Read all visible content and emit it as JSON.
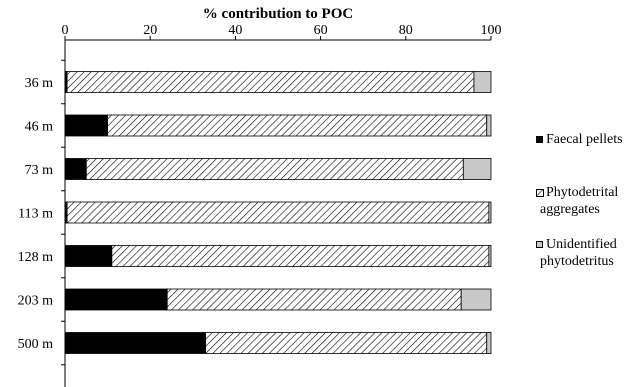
{
  "chart_data": {
    "type": "bar",
    "orientation": "horizontal",
    "stacked": true,
    "title": "% contribution to POC",
    "xlabel": "% contribution to POC",
    "ylabel": "",
    "xlim": [
      0,
      100
    ],
    "x_ticks": [
      "0",
      "20",
      "40",
      "60",
      "80",
      "100"
    ],
    "categories": [
      "36 m",
      "46 m",
      "73 m",
      "113 m",
      "128 m",
      "203 m",
      "500 m"
    ],
    "series": [
      {
        "name": "Faecal pellets",
        "fill": "solid",
        "color": "#000000",
        "values": [
          0.5,
          10,
          5,
          0.5,
          11,
          24,
          33
        ]
      },
      {
        "name": "Phytodetrital aggregates",
        "fill": "hatch",
        "color": "#000000",
        "values": [
          95.5,
          89,
          88.5,
          99,
          88.5,
          69,
          66
        ]
      },
      {
        "name": "Unidentified phytodetritus",
        "fill": "solid",
        "color": "#c8c8c8",
        "values": [
          4,
          1,
          6.5,
          0.5,
          0.5,
          7,
          1
        ]
      }
    ],
    "legend_position": "right",
    "grid": false
  },
  "legend": {
    "items": [
      {
        "line1": "Faecal pellets",
        "line2": ""
      },
      {
        "line1": "Phytodetrital",
        "line2": "aggregates"
      },
      {
        "line1": "Unidentified",
        "line2": "phytodetritus"
      }
    ]
  }
}
